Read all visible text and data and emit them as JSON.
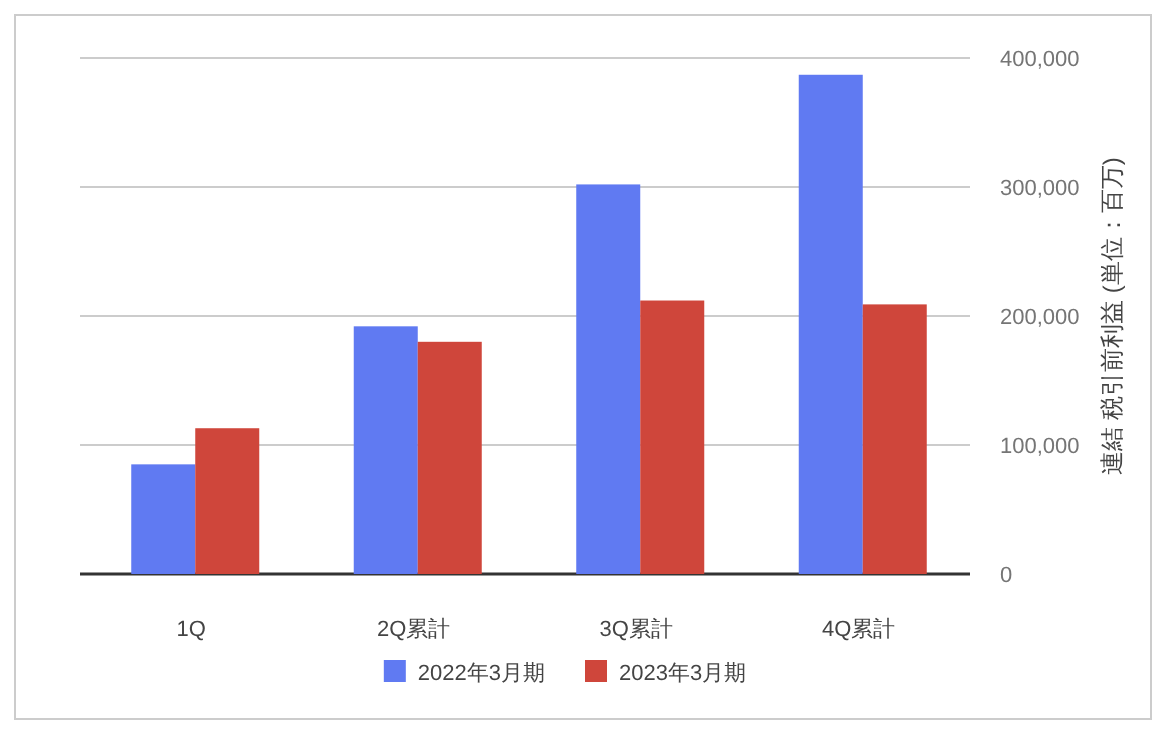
{
  "chart_data": {
    "type": "bar",
    "categories": [
      "1Q",
      "2Q累計",
      "3Q累計",
      "4Q累計"
    ],
    "series": [
      {
        "name": "2022年3月期",
        "color": "#607af2",
        "values": [
          85000,
          192000,
          302000,
          387000
        ]
      },
      {
        "name": "2023年3月期",
        "color": "#cf463b",
        "values": [
          113000,
          180000,
          212000,
          209000
        ]
      }
    ],
    "ylabel": "連結 税引前利益 (単位：百万)",
    "ylim": [
      0,
      400000
    ],
    "yticks": [
      {
        "value": 0,
        "label": "0"
      },
      {
        "value": 100000,
        "label": "100,000"
      },
      {
        "value": 200000,
        "label": "200,000"
      },
      {
        "value": 300000,
        "label": "300,000"
      },
      {
        "value": 400000,
        "label": "400,000"
      }
    ],
    "grid": "y",
    "legend": "bottom"
  }
}
